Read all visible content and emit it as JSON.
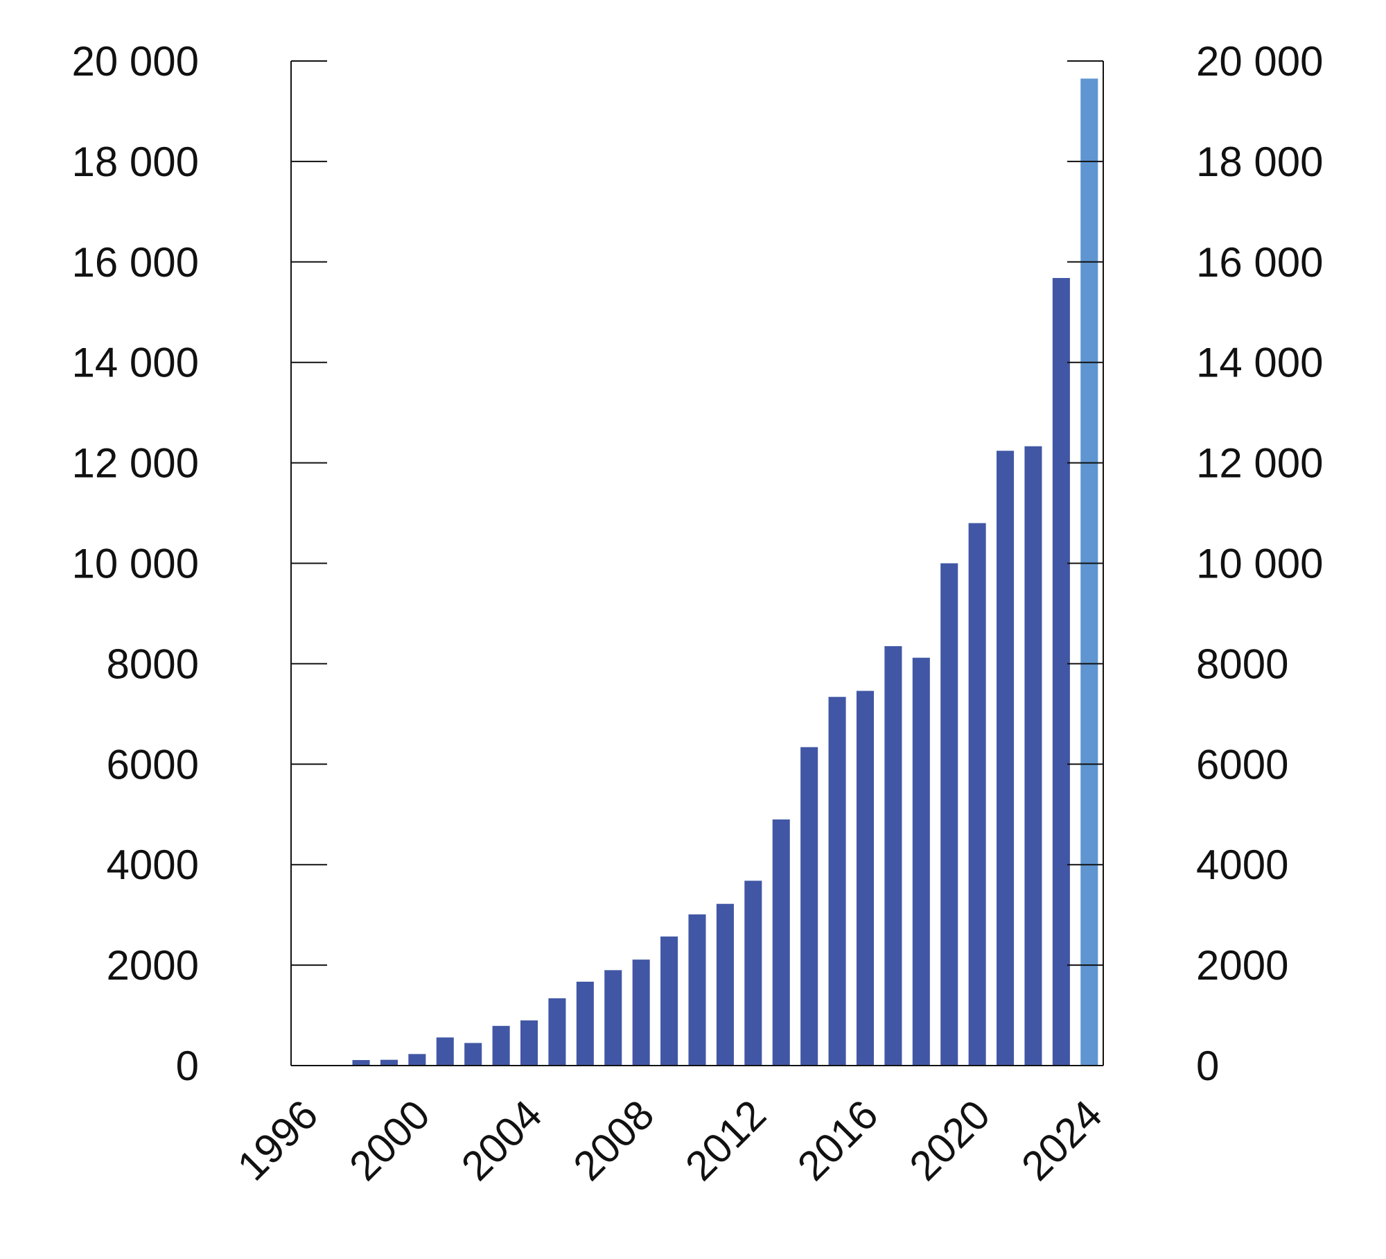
{
  "chart_data": {
    "type": "bar",
    "title": "",
    "xlabel": "",
    "ylabel": "",
    "ylim": [
      0,
      20000
    ],
    "y_ticks": [
      0,
      2000,
      4000,
      6000,
      8000,
      10000,
      12000,
      14000,
      16000,
      18000,
      20000
    ],
    "y_tick_labels": [
      "0",
      "2000",
      "4000",
      "6000",
      "8000",
      "10 000",
      "12 000",
      "14 000",
      "16 000",
      "18 000",
      "20 000"
    ],
    "right_axis_tick_labels": [
      "0",
      "2000",
      "4000",
      "6000",
      "8000",
      "10 000",
      "12 000",
      "14 000",
      "16 000",
      "18 000",
      "20 000"
    ],
    "x_range": [
      1996,
      2025
    ],
    "x_tick_labels": [
      "1996",
      "2000",
      "2004",
      "2008",
      "2012",
      "2016",
      "2020",
      "2024"
    ],
    "grid": false,
    "legend": "none",
    "colors": {
      "bars": "#4157a5",
      "highlight": "#5f95d1",
      "axis": "#111111"
    },
    "series": [
      {
        "categories": [
          1996,
          1997,
          1998,
          1999,
          2000,
          2001,
          2002,
          2003,
          2004,
          2005,
          2006,
          2007,
          2008,
          2009,
          2010,
          2011,
          2012,
          2013,
          2014,
          2015,
          2016,
          2017,
          2018,
          2019,
          2020,
          2021,
          2022,
          2023,
          2024
        ],
        "values": [
          0,
          0,
          110,
          115,
          230,
          560,
          450,
          790,
          900,
          1340,
          1670,
          1900,
          2110,
          2570,
          3010,
          3220,
          3680,
          4900,
          6340,
          7340,
          7460,
          8350,
          8120,
          10000,
          10800,
          12240,
          12330,
          15680,
          19650
        ],
        "highlight_last": true
      }
    ]
  }
}
